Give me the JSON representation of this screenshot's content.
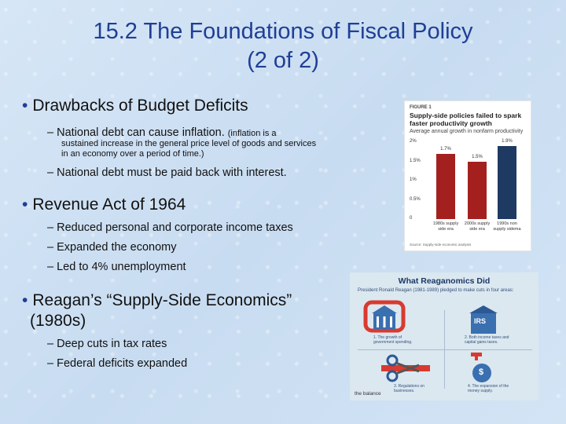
{
  "slide": {
    "title_line1": "15.2 The Foundations of Fiscal Policy",
    "title_line2": "(2 of 2)"
  },
  "bullets": {
    "b1_title": "Drawbacks of Budget Deficits",
    "b1_sub1_main": "National debt can cause inflation.",
    "b1_sub1_def_a": "(inflation is a",
    "b1_sub1_def_b": "sustained increase in the general price level of goods and services",
    "b1_sub1_def_c": "in an economy over a period of time.)",
    "b1_sub2": "National debt must be paid back with interest.",
    "b2_title": "Revenue Act of 1964",
    "b2_sub1": "Reduced personal and corporate income taxes",
    "b2_sub2": "Expanded the economy",
    "b2_sub3": "Led to 4% unemployment",
    "b3_title_line1": "Reagan’s “Supply-Side Economics”",
    "b3_title_line2": "(1980s)",
    "b3_sub1": "Deep cuts in tax rates",
    "b3_sub2": "Federal deficits expanded",
    "dash": "–",
    "dot": "•"
  },
  "chart_data": {
    "type": "bar",
    "figure_tag": "FIGURE 1",
    "title": "Supply-side policies failed to spark faster productivity growth",
    "subtitle": "Average annual growth in nonfarm productivity",
    "categories": [
      "1980s supply side era",
      "2000s supply side era",
      "1990s non supply sidema"
    ],
    "values": [
      1.7,
      1.5,
      1.9
    ],
    "value_labels": [
      "1.7%",
      "1.5%",
      "1.9%"
    ],
    "yticks": [
      "2%",
      "1.5%",
      "1%",
      "0.5%",
      "0"
    ],
    "ylim": [
      0,
      2.0
    ],
    "colors": [
      "#a3201f",
      "#a3201f",
      "#1e3a63"
    ],
    "source": "Source: Supply-side economic analysis"
  },
  "infographic": {
    "title": "What Reaganomics Did",
    "subtitle": "President Ronald Reagan (1981-1989) pledged to make cuts in four areas:",
    "cap1": "1. The growth of government spending.",
    "cap2": "2. Both income taxes and capital gains taxes.",
    "cap3": "3. Regulations on businesses.",
    "cap4": "4. The expansion of the money supply.",
    "irs": "IRS",
    "dollar": "$",
    "logo": "the balance"
  }
}
